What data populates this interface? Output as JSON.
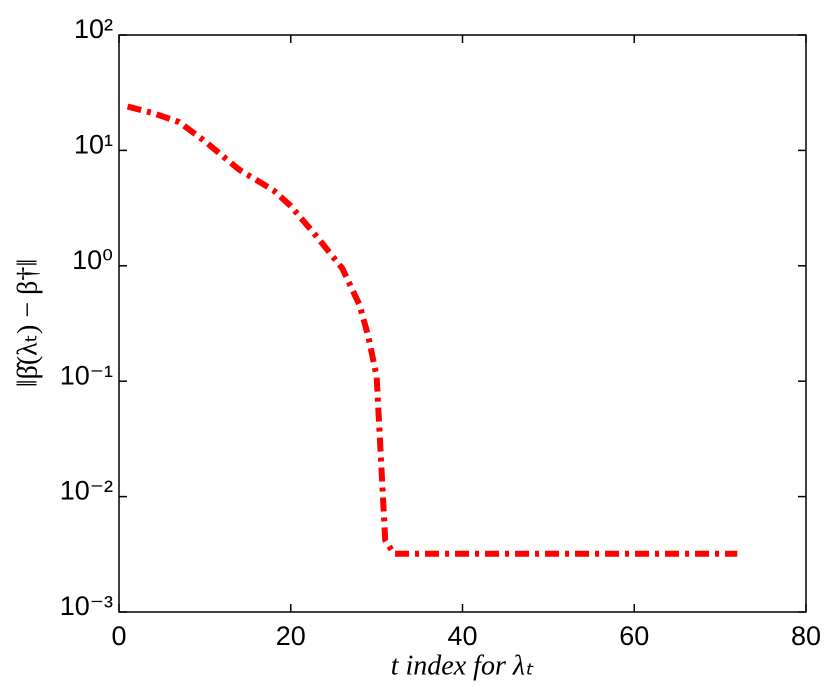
{
  "chart_data": {
    "type": "line",
    "xlabel": "t index for λₜ",
    "ylabel": "‖β̂(λₜ) − β†‖",
    "x": [
      1,
      4,
      7,
      10,
      14,
      18,
      20,
      23,
      26,
      28,
      29,
      30,
      31,
      32,
      40,
      50,
      60,
      72
    ],
    "values": [
      24,
      21,
      17.6,
      12,
      6.8,
      4.5,
      3.3,
      1.8,
      0.95,
      0.46,
      0.25,
      0.11,
      0.0042,
      0.0032,
      0.0032,
      0.0032,
      0.0032,
      0.0032
    ],
    "color": "#ff0000",
    "xlim": [
      0,
      80
    ],
    "xticks": [
      0,
      20,
      40,
      60,
      80
    ],
    "ylim": [
      0.001,
      100
    ],
    "yscale": "log",
    "yticks": [
      {
        "value": 0.001,
        "label": "10⁻³"
      },
      {
        "value": 0.01,
        "label": "10⁻²"
      },
      {
        "value": 0.1,
        "label": "10⁻¹"
      },
      {
        "value": 1,
        "label": "10⁰"
      },
      {
        "value": 10,
        "label": "10¹"
      },
      {
        "value": 100,
        "label": "10²"
      }
    ]
  }
}
